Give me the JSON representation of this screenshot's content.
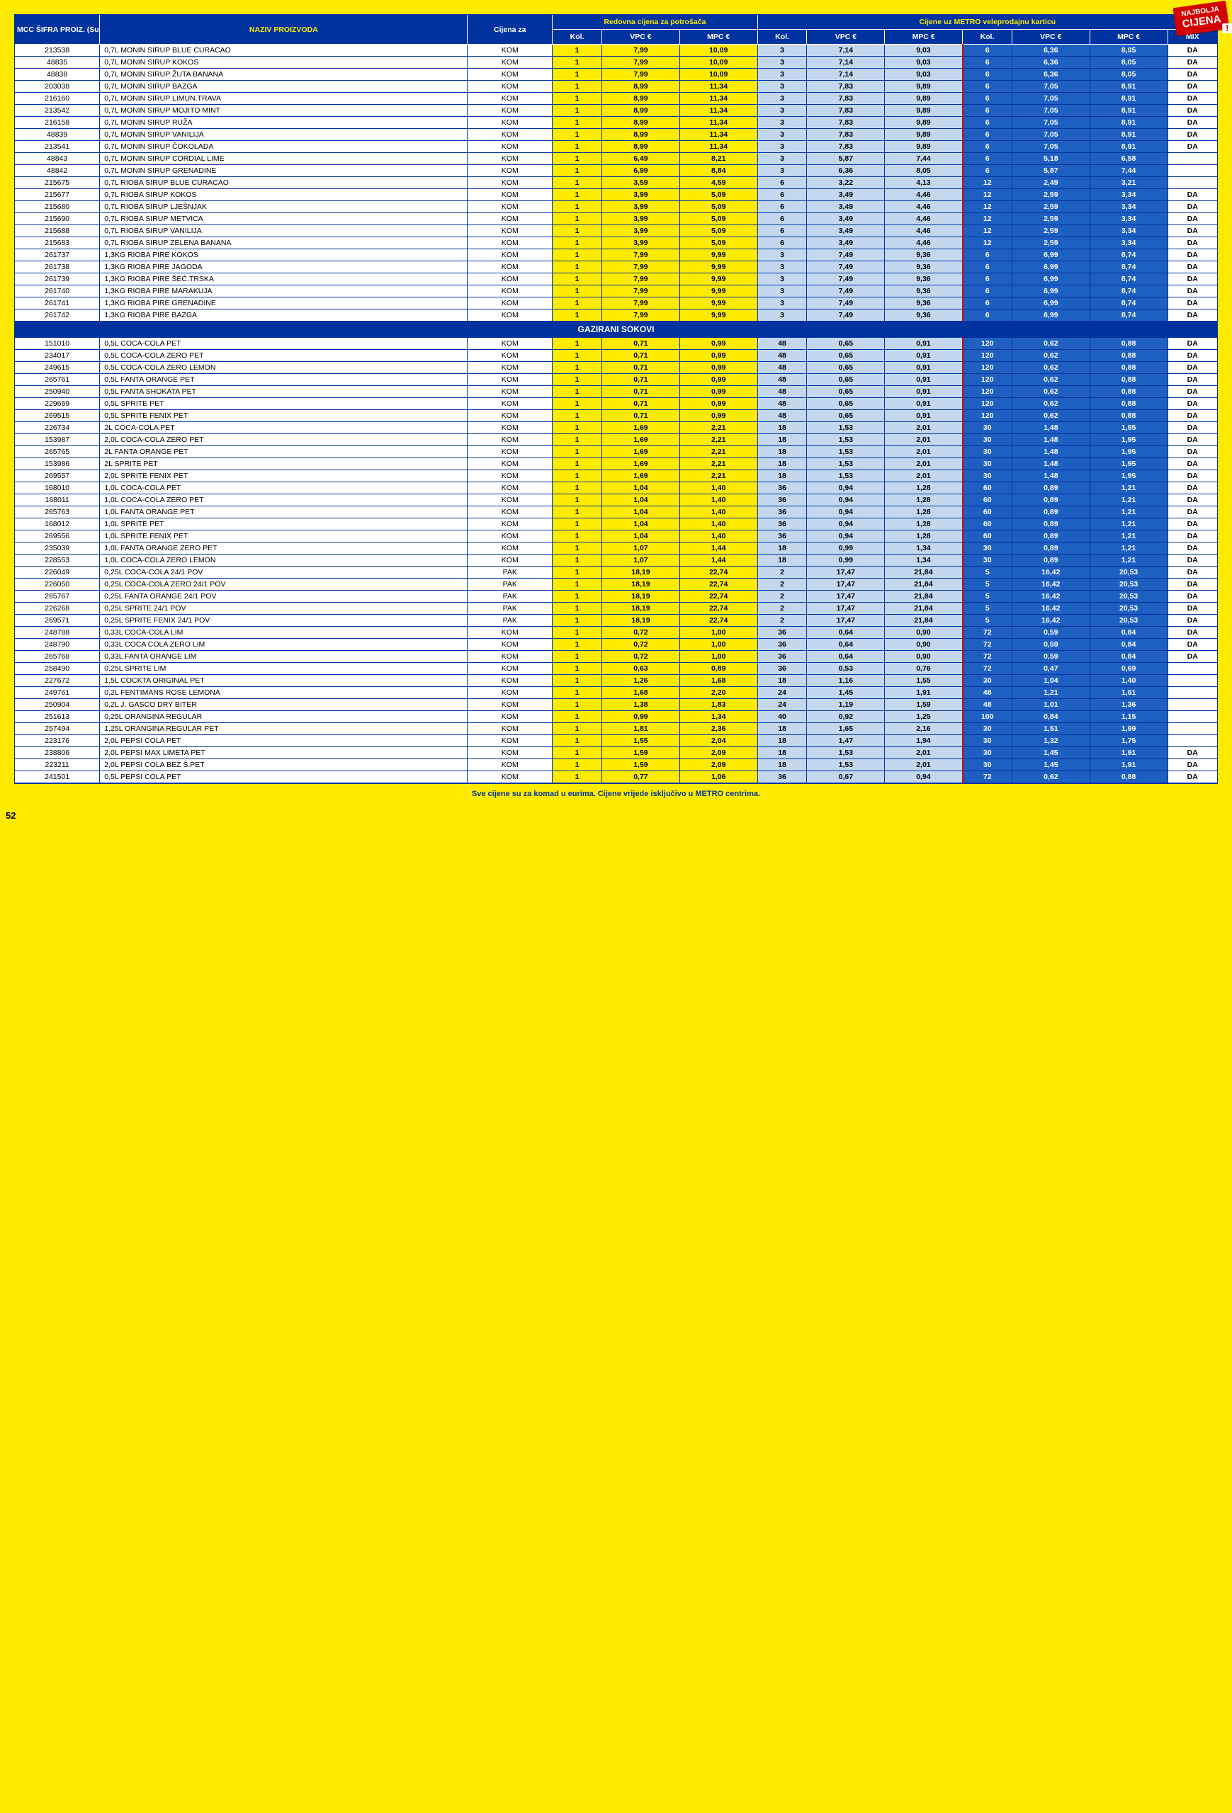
{
  "badge": {
    "line1": "NAJBOLJA",
    "line2": "CIJENA",
    "mark": "!"
  },
  "header": {
    "col_code": "MCC ŠIFRA PROIZ. (Subsys)",
    "col_name": "NAZIV PROIZVODA",
    "col_unit": "Cijena za",
    "group_regular": "Redovna cijena za potrošača",
    "group_metro": "Cijene uz METRO veleprodajnu karticu",
    "sub_kol": "Kol.",
    "sub_vpc": "VPC €",
    "sub_mpc": "MPC €",
    "sub_mix": "MIX"
  },
  "section2_title": "GAZIRANI SOKOVI",
  "footer": "Sve cijene su za komad u eurima. Cijene vrijede isključivo u METRO centrima.",
  "page": "52",
  "rows1": [
    {
      "c": "213538",
      "n": "0,7L MONIN SIRUP BLUE CURACAO",
      "u": "KOM",
      "k1": "1",
      "v1": "7,99",
      "m1": "10,09",
      "k2": "3",
      "v2": "7,14",
      "m2": "9,03",
      "k3": "6",
      "v3": "6,36",
      "m3": "8,05",
      "x": "DA"
    },
    {
      "c": "48835",
      "n": "0,7L MONIN SIRUP KOKOS",
      "u": "KOM",
      "k1": "1",
      "v1": "7,99",
      "m1": "10,09",
      "k2": "3",
      "v2": "7,14",
      "m2": "9,03",
      "k3": "6",
      "v3": "6,36",
      "m3": "8,05",
      "x": "DA"
    },
    {
      "c": "48838",
      "n": "0,7L MONIN SIRUP ŽUTA BANANA",
      "u": "KOM",
      "k1": "1",
      "v1": "7,99",
      "m1": "10,09",
      "k2": "3",
      "v2": "7,14",
      "m2": "9,03",
      "k3": "6",
      "v3": "6,36",
      "m3": "8,05",
      "x": "DA"
    },
    {
      "c": "203038",
      "n": "0,7L MONIN SIRUP BAZGA",
      "u": "KOM",
      "k1": "1",
      "v1": "8,99",
      "m1": "11,34",
      "k2": "3",
      "v2": "7,83",
      "m2": "9,89",
      "k3": "6",
      "v3": "7,05",
      "m3": "8,91",
      "x": "DA"
    },
    {
      "c": "216160",
      "n": "0,7L MONIN SIRUP LIMUN.TRAVA",
      "u": "KOM",
      "k1": "1",
      "v1": "8,99",
      "m1": "11,34",
      "k2": "3",
      "v2": "7,83",
      "m2": "9,89",
      "k3": "6",
      "v3": "7,05",
      "m3": "8,91",
      "x": "DA"
    },
    {
      "c": "213542",
      "n": "0,7L MONIN SIRUP MOJITO MINT",
      "u": "KOM",
      "k1": "1",
      "v1": "8,99",
      "m1": "11,34",
      "k2": "3",
      "v2": "7,83",
      "m2": "9,89",
      "k3": "6",
      "v3": "7,05",
      "m3": "8,91",
      "x": "DA"
    },
    {
      "c": "216158",
      "n": "0,7L MONIN SIRUP RUŽA",
      "u": "KOM",
      "k1": "1",
      "v1": "8,99",
      "m1": "11,34",
      "k2": "3",
      "v2": "7,83",
      "m2": "9,89",
      "k3": "6",
      "v3": "7,05",
      "m3": "8,91",
      "x": "DA"
    },
    {
      "c": "48839",
      "n": "0,7L MONIN SIRUP VANILIJA",
      "u": "KOM",
      "k1": "1",
      "v1": "8,99",
      "m1": "11,34",
      "k2": "3",
      "v2": "7,83",
      "m2": "9,89",
      "k3": "6",
      "v3": "7,05",
      "m3": "8,91",
      "x": "DA"
    },
    {
      "c": "213541",
      "n": "0,7L MONIN SIRUP ČOKOLADA",
      "u": "KOM",
      "k1": "1",
      "v1": "8,99",
      "m1": "11,34",
      "k2": "3",
      "v2": "7,83",
      "m2": "9,89",
      "k3": "6",
      "v3": "7,05",
      "m3": "8,91",
      "x": "DA"
    },
    {
      "c": "48843",
      "n": "0,7L MONIN SIRUP CORDIAL LIME",
      "u": "KOM",
      "k1": "1",
      "v1": "6,49",
      "m1": "8,21",
      "k2": "3",
      "v2": "5,87",
      "m2": "7,44",
      "k3": "6",
      "v3": "5,18",
      "m3": "6,58",
      "x": ""
    },
    {
      "c": "48842",
      "n": "0,7L MONIN SIRUP GRENADINE",
      "u": "KOM",
      "k1": "1",
      "v1": "6,99",
      "m1": "8,84",
      "k2": "3",
      "v2": "6,36",
      "m2": "8,05",
      "k3": "6",
      "v3": "5,87",
      "m3": "7,44",
      "x": ""
    },
    {
      "c": "215675",
      "n": "0,7L RIOBA SIRUP BLUE CURACAO",
      "u": "KOM",
      "k1": "1",
      "v1": "3,59",
      "m1": "4,59",
      "k2": "6",
      "v2": "3,22",
      "m2": "4,13",
      "k3": "12",
      "v3": "2,49",
      "m3": "3,21",
      "x": ""
    },
    {
      "c": "215677",
      "n": "0,7L RIOBA SIRUP KOKOS",
      "u": "KOM",
      "k1": "1",
      "v1": "3,99",
      "m1": "5,09",
      "k2": "6",
      "v2": "3,49",
      "m2": "4,46",
      "k3": "12",
      "v3": "2,59",
      "m3": "3,34",
      "x": "DA"
    },
    {
      "c": "215680",
      "n": "0,7L RIOBA SIRUP LJEŠNJAK",
      "u": "KOM",
      "k1": "1",
      "v1": "3,99",
      "m1": "5,09",
      "k2": "6",
      "v2": "3,49",
      "m2": "4,46",
      "k3": "12",
      "v3": "2,59",
      "m3": "3,34",
      "x": "DA"
    },
    {
      "c": "215690",
      "n": "0,7L RIOBA SIRUP METVICA",
      "u": "KOM",
      "k1": "1",
      "v1": "3,99",
      "m1": "5,09",
      "k2": "6",
      "v2": "3,49",
      "m2": "4,46",
      "k3": "12",
      "v3": "2,59",
      "m3": "3,34",
      "x": "DA"
    },
    {
      "c": "215688",
      "n": "0,7L RIOBA SIRUP VANILIJA",
      "u": "KOM",
      "k1": "1",
      "v1": "3,99",
      "m1": "5,09",
      "k2": "6",
      "v2": "3,49",
      "m2": "4,46",
      "k3": "12",
      "v3": "2,59",
      "m3": "3,34",
      "x": "DA"
    },
    {
      "c": "215683",
      "n": "0,7L RIOBA SIRUP ZELENA BANANA",
      "u": "KOM",
      "k1": "1",
      "v1": "3,99",
      "m1": "5,09",
      "k2": "6",
      "v2": "3,49",
      "m2": "4,46",
      "k3": "12",
      "v3": "2,59",
      "m3": "3,34",
      "x": "DA"
    },
    {
      "c": "261737",
      "n": "1,3KG RIOBA PIRE KOKOS",
      "u": "KOM",
      "k1": "1",
      "v1": "7,99",
      "m1": "9,99",
      "k2": "3",
      "v2": "7,49",
      "m2": "9,36",
      "k3": "6",
      "v3": "6,99",
      "m3": "8,74",
      "x": "DA"
    },
    {
      "c": "261738",
      "n": "1,3KG RIOBA PIRE JAGODA",
      "u": "KOM",
      "k1": "1",
      "v1": "7,99",
      "m1": "9,99",
      "k2": "3",
      "v2": "7,49",
      "m2": "9,36",
      "k3": "6",
      "v3": "6,99",
      "m3": "8,74",
      "x": "DA"
    },
    {
      "c": "261739",
      "n": "1,3KG RIOBA PIRE ŠEĆ.TRSKA",
      "u": "KOM",
      "k1": "1",
      "v1": "7,99",
      "m1": "9,99",
      "k2": "3",
      "v2": "7,49",
      "m2": "9,36",
      "k3": "6",
      "v3": "6,99",
      "m3": "8,74",
      "x": "DA"
    },
    {
      "c": "261740",
      "n": "1,3KG RIOBA PIRE MARAKUJA",
      "u": "KOM",
      "k1": "1",
      "v1": "7,99",
      "m1": "9,99",
      "k2": "3",
      "v2": "7,49",
      "m2": "9,36",
      "k3": "6",
      "v3": "6,99",
      "m3": "8,74",
      "x": "DA"
    },
    {
      "c": "261741",
      "n": "1,3KG RIOBA PIRE GRENADINE",
      "u": "KOM",
      "k1": "1",
      "v1": "7,99",
      "m1": "9,99",
      "k2": "3",
      "v2": "7,49",
      "m2": "9,36",
      "k3": "6",
      "v3": "6,99",
      "m3": "8,74",
      "x": "DA"
    },
    {
      "c": "261742",
      "n": "1,3KG RIOBA PIRE BAZGA",
      "u": "KOM",
      "k1": "1",
      "v1": "7,99",
      "m1": "9,99",
      "k2": "3",
      "v2": "7,49",
      "m2": "9,36",
      "k3": "6",
      "v3": "6,99",
      "m3": "8,74",
      "x": "DA"
    }
  ],
  "rows2": [
    {
      "c": "151010",
      "n": "0,5L COCA-COLA PET",
      "u": "KOM",
      "k1": "1",
      "v1": "0,71",
      "m1": "0,99",
      "k2": "48",
      "v2": "0,65",
      "m2": "0,91",
      "k3": "120",
      "v3": "0,62",
      "m3": "0,88",
      "x": "DA"
    },
    {
      "c": "234017",
      "n": "0,5L COCA-COLA ZERO PET",
      "u": "KOM",
      "k1": "1",
      "v1": "0,71",
      "m1": "0,99",
      "k2": "48",
      "v2": "0,65",
      "m2": "0,91",
      "k3": "120",
      "v3": "0,62",
      "m3": "0,88",
      "x": "DA"
    },
    {
      "c": "249615",
      "n": "0.5L COCA-COLA ZERO LEMON",
      "u": "KOM",
      "k1": "1",
      "v1": "0,71",
      "m1": "0,99",
      "k2": "48",
      "v2": "0,65",
      "m2": "0,91",
      "k3": "120",
      "v3": "0,62",
      "m3": "0,88",
      "x": "DA"
    },
    {
      "c": "265761",
      "n": "0,5L FANTA ORANGE PET",
      "u": "KOM",
      "k1": "1",
      "v1": "0,71",
      "m1": "0,99",
      "k2": "48",
      "v2": "0,65",
      "m2": "0,91",
      "k3": "120",
      "v3": "0,62",
      "m3": "0,88",
      "x": "DA"
    },
    {
      "c": "250940",
      "n": "0,5L FANTA SHOKATA PET",
      "u": "KOM",
      "k1": "1",
      "v1": "0,71",
      "m1": "0,99",
      "k2": "48",
      "v2": "0,65",
      "m2": "0,91",
      "k3": "120",
      "v3": "0,62",
      "m3": "0,88",
      "x": "DA"
    },
    {
      "c": "229669",
      "n": "0,5L SPRITE PET",
      "u": "KOM",
      "k1": "1",
      "v1": "0,71",
      "m1": "0,99",
      "k2": "48",
      "v2": "0,65",
      "m2": "0,91",
      "k3": "120",
      "v3": "0,62",
      "m3": "0,88",
      "x": "DA"
    },
    {
      "c": "269515",
      "n": "0,5L SPRITE FENIX PET",
      "u": "KOM",
      "k1": "1",
      "v1": "0,71",
      "m1": "0,99",
      "k2": "48",
      "v2": "0,65",
      "m2": "0,91",
      "k3": "120",
      "v3": "0,62",
      "m3": "0,88",
      "x": "DA"
    },
    {
      "c": "226734",
      "n": "2L COCA-COLA PET",
      "u": "KOM",
      "k1": "1",
      "v1": "1,69",
      "m1": "2,21",
      "k2": "18",
      "v2": "1,53",
      "m2": "2,01",
      "k3": "30",
      "v3": "1,48",
      "m3": "1,95",
      "x": "DA"
    },
    {
      "c": "153987",
      "n": "2,0L COCA-COLA ZERO PET",
      "u": "KOM",
      "k1": "1",
      "v1": "1,69",
      "m1": "2,21",
      "k2": "18",
      "v2": "1,53",
      "m2": "2,01",
      "k3": "30",
      "v3": "1,48",
      "m3": "1,95",
      "x": "DA"
    },
    {
      "c": "265765",
      "n": "2L FANTA ORANGE PET",
      "u": "KOM",
      "k1": "1",
      "v1": "1,69",
      "m1": "2,21",
      "k2": "18",
      "v2": "1,53",
      "m2": "2,01",
      "k3": "30",
      "v3": "1,48",
      "m3": "1,95",
      "x": "DA"
    },
    {
      "c": "153986",
      "n": "2L SPRITE PET",
      "u": "KOM",
      "k1": "1",
      "v1": "1,69",
      "m1": "2,21",
      "k2": "18",
      "v2": "1,53",
      "m2": "2,01",
      "k3": "30",
      "v3": "1,48",
      "m3": "1,95",
      "x": "DA"
    },
    {
      "c": "269557",
      "n": "2,0L SPRITE FENIX PET",
      "u": "KOM",
      "k1": "1",
      "v1": "1,69",
      "m1": "2,21",
      "k2": "18",
      "v2": "1,53",
      "m2": "2,01",
      "k3": "30",
      "v3": "1,48",
      "m3": "1,95",
      "x": "DA"
    },
    {
      "c": "168010",
      "n": "1,0L COCA-COLA PET",
      "u": "KOM",
      "k1": "1",
      "v1": "1,04",
      "m1": "1,40",
      "k2": "36",
      "v2": "0,94",
      "m2": "1,28",
      "k3": "60",
      "v3": "0,89",
      "m3": "1,21",
      "x": "DA"
    },
    {
      "c": "168011",
      "n": "1,0L COCA-COLA ZERO PET",
      "u": "KOM",
      "k1": "1",
      "v1": "1,04",
      "m1": "1,40",
      "k2": "36",
      "v2": "0,94",
      "m2": "1,28",
      "k3": "60",
      "v3": "0,89",
      "m3": "1,21",
      "x": "DA"
    },
    {
      "c": "265763",
      "n": "1,0L FANTA ORANGE PET",
      "u": "KOM",
      "k1": "1",
      "v1": "1,04",
      "m1": "1,40",
      "k2": "36",
      "v2": "0,94",
      "m2": "1,28",
      "k3": "60",
      "v3": "0,89",
      "m3": "1,21",
      "x": "DA"
    },
    {
      "c": "168012",
      "n": "1,0L SPRITE PET",
      "u": "KOM",
      "k1": "1",
      "v1": "1,04",
      "m1": "1,40",
      "k2": "36",
      "v2": "0,94",
      "m2": "1,28",
      "k3": "60",
      "v3": "0,89",
      "m3": "1,21",
      "x": "DA"
    },
    {
      "c": "269556",
      "n": "1,0L SPRITE FENIX PET",
      "u": "KOM",
      "k1": "1",
      "v1": "1,04",
      "m1": "1,40",
      "k2": "36",
      "v2": "0,94",
      "m2": "1,28",
      "k3": "60",
      "v3": "0,89",
      "m3": "1,21",
      "x": "DA"
    },
    {
      "c": "235039",
      "n": "1,0L FANTA ORANGE ZERO PET",
      "u": "KOM",
      "k1": "1",
      "v1": "1,07",
      "m1": "1,44",
      "k2": "18",
      "v2": "0,99",
      "m2": "1,34",
      "k3": "30",
      "v3": "0,89",
      "m3": "1,21",
      "x": "DA"
    },
    {
      "c": "228553",
      "n": "1,0L COCA-COLA ZERO LEMON",
      "u": "KOM",
      "k1": "1",
      "v1": "1,07",
      "m1": "1,44",
      "k2": "18",
      "v2": "0,99",
      "m2": "1,34",
      "k3": "30",
      "v3": "0,89",
      "m3": "1,21",
      "x": "DA"
    },
    {
      "c": "226049",
      "n": "0,25L COCA-COLA 24/1 POV",
      "u": "PAK",
      "k1": "1",
      "v1": "18,19",
      "m1": "22,74",
      "k2": "2",
      "v2": "17,47",
      "m2": "21,84",
      "k3": "5",
      "v3": "16,42",
      "m3": "20,53",
      "x": "DA"
    },
    {
      "c": "226050",
      "n": "0,25L COCA-COLA ZERO 24/1 POV",
      "u": "PAK",
      "k1": "1",
      "v1": "18,19",
      "m1": "22,74",
      "k2": "2",
      "v2": "17,47",
      "m2": "21,84",
      "k3": "5",
      "v3": "16,42",
      "m3": "20,53",
      "x": "DA"
    },
    {
      "c": "265767",
      "n": "0,25L FANTA ORANGE 24/1 POV",
      "u": "PAK",
      "k1": "1",
      "v1": "18,19",
      "m1": "22,74",
      "k2": "2",
      "v2": "17,47",
      "m2": "21,84",
      "k3": "5",
      "v3": "16,42",
      "m3": "20,53",
      "x": "DA"
    },
    {
      "c": "226268",
      "n": "0,25L SPRITE 24/1 POV",
      "u": "PAK",
      "k1": "1",
      "v1": "18,19",
      "m1": "22,74",
      "k2": "2",
      "v2": "17,47",
      "m2": "21,84",
      "k3": "5",
      "v3": "16,42",
      "m3": "20,53",
      "x": "DA"
    },
    {
      "c": "269571",
      "n": "0,25L SPRITE FENIX 24/1 POV",
      "u": "PAK",
      "k1": "1",
      "v1": "18,19",
      "m1": "22,74",
      "k2": "2",
      "v2": "17,47",
      "m2": "21,84",
      "k3": "5",
      "v3": "16,42",
      "m3": "20,53",
      "x": "DA"
    },
    {
      "c": "248788",
      "n": "0,33L COCA-COLA LIM",
      "u": "KOM",
      "k1": "1",
      "v1": "0,72",
      "m1": "1,00",
      "k2": "36",
      "v2": "0,64",
      "m2": "0,90",
      "k3": "72",
      "v3": "0,59",
      "m3": "0,84",
      "x": "DA"
    },
    {
      "c": "248790",
      "n": "0,33L COCA COLA ZERO LIM",
      "u": "KOM",
      "k1": "1",
      "v1": "0,72",
      "m1": "1,00",
      "k2": "36",
      "v2": "0,64",
      "m2": "0,90",
      "k3": "72",
      "v3": "0,59",
      "m3": "0,84",
      "x": "DA"
    },
    {
      "c": "265768",
      "n": "0,33L FANTA ORANGE LIM",
      "u": "KOM",
      "k1": "1",
      "v1": "0,72",
      "m1": "1,00",
      "k2": "36",
      "v2": "0,64",
      "m2": "0,90",
      "k3": "72",
      "v3": "0,59",
      "m3": "0,84",
      "x": "DA"
    },
    {
      "c": "258490",
      "n": "0,25L SPRITE LIM",
      "u": "KOM",
      "k1": "1",
      "v1": "0,63",
      "m1": "0,89",
      "k2": "36",
      "v2": "0,53",
      "m2": "0,76",
      "k3": "72",
      "v3": "0,47",
      "m3": "0,69",
      "x": ""
    },
    {
      "c": "227672",
      "n": "1,5L COCKTA ORIGINAL PET",
      "u": "KOM",
      "k1": "1",
      "v1": "1,26",
      "m1": "1,68",
      "k2": "18",
      "v2": "1,16",
      "m2": "1,55",
      "k3": "30",
      "v3": "1,04",
      "m3": "1,40",
      "x": ""
    },
    {
      "c": "249761",
      "n": "0,2L FENTIMANS ROSE LEMONA",
      "u": "KOM",
      "k1": "1",
      "v1": "1,68",
      "m1": "2,20",
      "k2": "24",
      "v2": "1,45",
      "m2": "1,91",
      "k3": "48",
      "v3": "1,21",
      "m3": "1,61",
      "x": ""
    },
    {
      "c": "250904",
      "n": "0,2L J. GASCO DRY BITER",
      "u": "KOM",
      "k1": "1",
      "v1": "1,38",
      "m1": "1,83",
      "k2": "24",
      "v2": "1,19",
      "m2": "1,59",
      "k3": "48",
      "v3": "1,01",
      "m3": "1,36",
      "x": ""
    },
    {
      "c": "251613",
      "n": "0,25L ORANGINA REGULAR",
      "u": "KOM",
      "k1": "1",
      "v1": "0,99",
      "m1": "1,34",
      "k2": "40",
      "v2": "0,92",
      "m2": "1,25",
      "k3": "100",
      "v3": "0,84",
      "m3": "1,15",
      "x": ""
    },
    {
      "c": "257494",
      "n": "1,25L ORANGINA REGULAR PET",
      "u": "KOM",
      "k1": "1",
      "v1": "1,81",
      "m1": "2,36",
      "k2": "18",
      "v2": "1,65",
      "m2": "2,16",
      "k3": "30",
      "v3": "1,51",
      "m3": "1,99",
      "x": ""
    },
    {
      "c": "223176",
      "n": "2,0L PEPSI COLA PET",
      "u": "KOM",
      "k1": "1",
      "v1": "1,55",
      "m1": "2,04",
      "k2": "18",
      "v2": "1,47",
      "m2": "1,94",
      "k3": "30",
      "v3": "1,32",
      "m3": "1,75",
      "x": ""
    },
    {
      "c": "238806",
      "n": "2,0L PEPSI MAX LIMETA PET",
      "u": "KOM",
      "k1": "1",
      "v1": "1,59",
      "m1": "2,09",
      "k2": "18",
      "v2": "1,53",
      "m2": "2,01",
      "k3": "30",
      "v3": "1,45",
      "m3": "1,91",
      "x": "DA"
    },
    {
      "c": "223211",
      "n": "2,0L PEPSI COLA BEZ Š.PET",
      "u": "KOM",
      "k1": "1",
      "v1": "1,59",
      "m1": "2,09",
      "k2": "18",
      "v2": "1,53",
      "m2": "2,01",
      "k3": "30",
      "v3": "1,45",
      "m3": "1,91",
      "x": "DA"
    },
    {
      "c": "241501",
      "n": "0,5L PEPSI COLA PET",
      "u": "KOM",
      "k1": "1",
      "v1": "0,77",
      "m1": "1,06",
      "k2": "36",
      "v2": "0,67",
      "m2": "0,94",
      "k3": "72",
      "v3": "0,62",
      "m3": "0,88",
      "x": "DA"
    }
  ]
}
